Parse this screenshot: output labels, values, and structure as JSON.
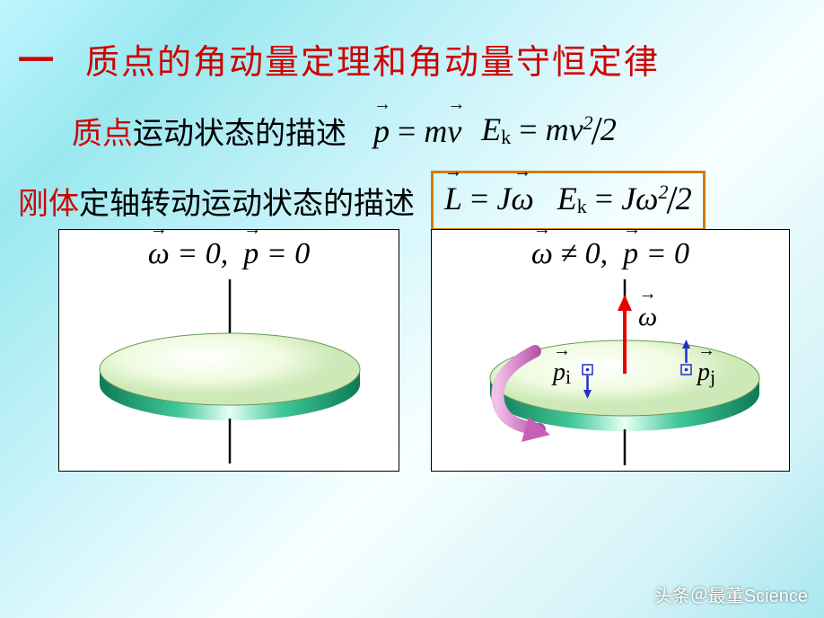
{
  "header": {
    "section_number": "一",
    "title": "质点的角动量定理和角动量守恒定律"
  },
  "line_particle": {
    "prefix_red": "质点",
    "suffix_black": "运动状态的描述",
    "eq_momentum_html": "<span class='vec'>p</span> <span class='up'>=</span> m<span class='vec'>v</span>",
    "eq_ke_html": "E<sub>k</sub> <span class='up'>=</span> mv<sup>2</sup><span class='slashbig up'>/</span>2"
  },
  "line_rigid": {
    "prefix_red": "刚体",
    "suffix_black": "定轴转动运动状态的描述",
    "eq_L_html": "<span class='vec'>L</span> <span class='up'>=</span> J<span class='vec'>ω</span>",
    "eq_ke_html": "E<sub>k</sub> <span class='up'>=</span> Jω<sup>2</sup><span class='slashbig up'>/</span>2",
    "box_border_color": "#d57a00"
  },
  "panels": {
    "left": {
      "label_html": "<span class='vec'>ω</span> <span class='up'>= 0,</span>&nbsp; <span class='vec'>p</span> <span class='up'>= 0</span>",
      "disk_colors": {
        "top_light": "#f6fde7",
        "top_dark": "#d9f0c4",
        "rim1": "#2aa87a",
        "rim2": "#0e7a55"
      },
      "axis_color": "#000000"
    },
    "right": {
      "label_html": "<span class='vec'>ω</span> <span class='up'>≠ 0,</span>&nbsp; <span class='vec'>p</span> <span class='up'>= 0</span>",
      "disk_colors": {
        "top_light": "#f6fde7",
        "top_dark": "#d9f0c4",
        "rim1": "#2aa87a",
        "rim2": "#0e7a55"
      },
      "axis_color": "#000000",
      "omega_arrow_color": "#e60000",
      "rotation_arrow_color": "#d070c8",
      "momentum_arrow_color": "#2030d0",
      "labels": {
        "omega": "ω",
        "pi": "p",
        "pi_sub": "i",
        "pj": "p",
        "pj_sub": "j"
      }
    }
  },
  "watermark": "头条＠最董Science"
}
